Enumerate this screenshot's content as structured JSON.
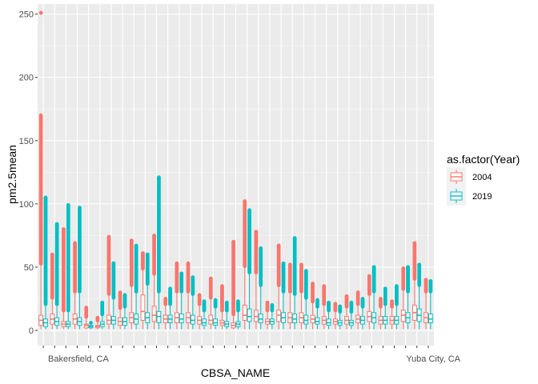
{
  "chart_data": {
    "type": "boxplot",
    "xlabel": "CBSA_NAME",
    "ylabel": "pm2.5mean",
    "ylim": [
      -12,
      258
    ],
    "yticks": [
      0,
      50,
      100,
      150,
      200,
      250
    ],
    "grid": true,
    "background": "#ebebeb",
    "legend": {
      "title": "as.factor(Year)",
      "placement": "right",
      "entries": [
        {
          "label": "2004",
          "color": "#f8766d"
        },
        {
          "label": "2019",
          "color": "#00bfc4"
        }
      ]
    },
    "first_category_label": "Bakersfield, CA",
    "last_category_label": "Yuba City, CA",
    "category_count": 35,
    "groups": [
      {
        "s2004": [
          1,
          4,
          8,
          12,
          52,
          84,
          170,
          251
        ],
        "s2019": [
          1,
          3,
          6,
          9,
          20,
          105
        ]
      },
      {
        "s2004": [
          1,
          5,
          9,
          13,
          25,
          60
        ],
        "s2019": [
          1,
          4,
          7,
          10,
          20,
          84
        ]
      },
      {
        "s2004": [
          1,
          3,
          5,
          7,
          15,
          80
        ],
        "s2019": [
          1,
          3,
          5,
          7,
          15,
          99
        ]
      },
      {
        "s2004": [
          1,
          5,
          9,
          13,
          30,
          69
        ],
        "s2019": [
          1,
          4,
          7,
          10,
          30,
          97
        ]
      },
      {
        "s2004": [
          1,
          2,
          4,
          5,
          10,
          18
        ],
        "s2019": [
          1,
          2,
          3,
          4,
          6,
          6
        ]
      },
      {
        "s2004": [
          1,
          2,
          3,
          4,
          7,
          10
        ],
        "s2019": [
          1,
          3,
          5,
          7,
          12,
          22
        ]
      },
      {
        "s2004": [
          1,
          5,
          8,
          12,
          28,
          74
        ],
        "s2019": [
          1,
          5,
          8,
          11,
          25,
          53
        ]
      },
      {
        "s2004": [
          1,
          4,
          7,
          10,
          17,
          30
        ],
        "s2019": [
          1,
          4,
          7,
          10,
          18,
          28
        ]
      },
      {
        "s2004": [
          1,
          6,
          10,
          14,
          35,
          71
        ],
        "s2019": [
          1,
          5,
          9,
          13,
          30,
          67
        ]
      },
      {
        "s2004": [
          1,
          8,
          15,
          28,
          48,
          61
        ],
        "s2019": [
          1,
          6,
          10,
          14,
          36,
          60
        ]
      },
      {
        "s2004": [
          1,
          7,
          12,
          19,
          44,
          75
        ],
        "s2019": [
          1,
          6,
          11,
          15,
          30,
          121
        ]
      },
      {
        "s2004": [
          1,
          6,
          9,
          12,
          20,
          25
        ],
        "s2019": [
          1,
          6,
          9,
          12,
          20,
          33
        ]
      },
      {
        "s2004": [
          1,
          6,
          10,
          14,
          30,
          53
        ],
        "s2019": [
          1,
          6,
          9,
          13,
          30,
          45
        ]
      },
      {
        "s2004": [
          1,
          6,
          10,
          14,
          30,
          53
        ],
        "s2019": [
          1,
          5,
          8,
          12,
          28,
          42
        ]
      },
      {
        "s2004": [
          1,
          5,
          8,
          11,
          20,
          28
        ],
        "s2019": [
          1,
          4,
          6,
          9,
          15,
          23
        ]
      },
      {
        "s2004": [
          1,
          5,
          8,
          12,
          25,
          41
        ],
        "s2019": [
          1,
          4,
          6,
          9,
          18,
          24
        ]
      },
      {
        "s2004": [
          1,
          4,
          6,
          8,
          15,
          35
        ],
        "s2019": [
          1,
          3,
          5,
          7,
          15,
          22
        ]
      },
      {
        "s2004": [
          1,
          2,
          4,
          6,
          12,
          70
        ],
        "s2019": [
          1,
          3,
          5,
          7,
          15,
          23
        ]
      },
      {
        "s2004": [
          1,
          8,
          12,
          20,
          50,
          102
        ],
        "s2019": [
          1,
          7,
          11,
          17,
          45,
          95
        ]
      },
      {
        "s2004": [
          1,
          7,
          11,
          16,
          45,
          78
        ],
        "s2019": [
          1,
          6,
          9,
          13,
          35,
          65
        ]
      },
      {
        "s2004": [
          1,
          5,
          7,
          9,
          15,
          22
        ],
        "s2019": [
          1,
          5,
          7,
          9,
          15,
          20
        ]
      },
      {
        "s2004": [
          1,
          7,
          12,
          16,
          35,
          67
        ],
        "s2019": [
          1,
          6,
          10,
          14,
          30,
          53
        ]
      },
      {
        "s2004": [
          1,
          6,
          10,
          14,
          30,
          52
        ],
        "s2019": [
          1,
          6,
          9,
          13,
          28,
          73
        ]
      },
      {
        "s2004": [
          1,
          6,
          10,
          14,
          30,
          52
        ],
        "s2019": [
          1,
          5,
          8,
          12,
          25,
          47
        ]
      },
      {
        "s2004": [
          1,
          6,
          9,
          12,
          22,
          37
        ],
        "s2019": [
          1,
          5,
          7,
          10,
          18,
          24
        ]
      },
      {
        "s2004": [
          1,
          5,
          8,
          11,
          20,
          35
        ],
        "s2019": [
          1,
          4,
          6,
          9,
          15,
          22
        ]
      },
      {
        "s2004": [
          1,
          5,
          7,
          9,
          15,
          21
        ],
        "s2019": [
          1,
          4,
          6,
          8,
          14,
          19
        ]
      },
      {
        "s2004": [
          1,
          5,
          8,
          11,
          18,
          27
        ],
        "s2019": [
          1,
          4,
          6,
          8,
          14,
          22
        ]
      },
      {
        "s2004": [
          1,
          6,
          9,
          12,
          20,
          30
        ],
        "s2019": [
          1,
          5,
          8,
          11,
          18,
          25
        ]
      },
      {
        "s2004": [
          1,
          7,
          11,
          15,
          28,
          43
        ],
        "s2019": [
          1,
          6,
          10,
          14,
          30,
          50
        ]
      },
      {
        "s2004": [
          1,
          5,
          8,
          11,
          18,
          25
        ],
        "s2019": [
          1,
          5,
          8,
          11,
          20,
          33
        ]
      },
      {
        "s2004": [
          1,
          5,
          8,
          11,
          18,
          23
        ],
        "s2019": [
          1,
          5,
          8,
          11,
          20,
          35
        ]
      },
      {
        "s2004": [
          1,
          7,
          12,
          16,
          32,
          49
        ],
        "s2019": [
          1,
          6,
          10,
          14,
          30,
          50
        ]
      },
      {
        "s2004": [
          1,
          8,
          14,
          20,
          40,
          69
        ],
        "s2019": [
          1,
          7,
          12,
          17,
          35,
          52
        ]
      },
      {
        "s2004": [
          1,
          6,
          10,
          14,
          30,
          40
        ],
        "s2019": [
          1,
          6,
          9,
          13,
          30,
          39
        ]
      }
    ]
  }
}
